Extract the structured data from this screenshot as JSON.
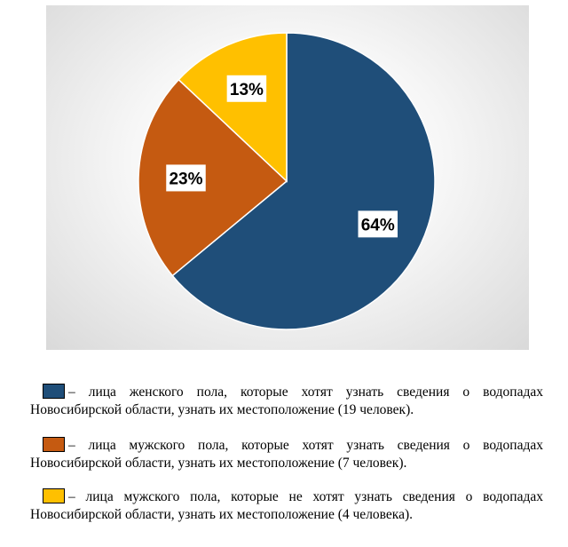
{
  "chart_data": {
    "type": "pie",
    "values": [
      64,
      23,
      13
    ],
    "value_labels": [
      "64%",
      "23%",
      "13%"
    ],
    "colors": [
      "#1f4e79",
      "#c55a11",
      "#ffc000"
    ],
    "start_angle_deg": 0,
    "order": [
      "blue",
      "orange",
      "yellow"
    ]
  },
  "legend": [
    {
      "color": "#1f4e79",
      "line1": "– лица женского пола, которые хотят узнать сведения о водопадах",
      "line2": "Новосибирской области, узнать их местоположение (19 человек)."
    },
    {
      "color": "#c55a11",
      "line1": "– лица мужского пола, которые хотят узнать сведения о водопадах",
      "line2": "Новосибирской области, узнать их местоположение (7 человек)."
    },
    {
      "color": "#ffc000",
      "line1": "– лица мужского пола, которые не хотят узнать сведения о водопадах",
      "line2": "Новосибирской области, узнать их местоположение (4 человека)."
    }
  ]
}
